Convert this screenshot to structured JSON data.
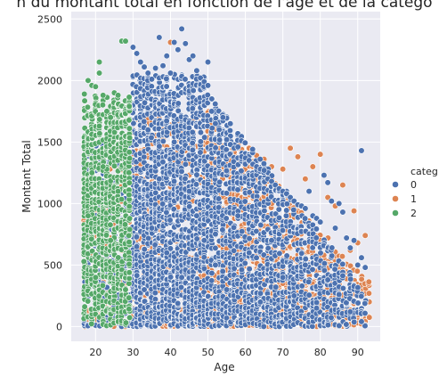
{
  "chart_data": {
    "type": "scatter",
    "title": "n du montant total en fonction de l'âge et de la catégo",
    "xlabel": "Age",
    "ylabel": "Montant Total",
    "xlim": [
      13.5,
      96
    ],
    "ylim": [
      -120,
      2560
    ],
    "x_ticks": [
      "20",
      "30",
      "40",
      "50",
      "60",
      "70",
      "80",
      "90"
    ],
    "y_ticks": [
      "0",
      "500",
      "1000",
      "1500",
      "2000",
      "2500"
    ],
    "grid": true,
    "legend_position": "right",
    "legend_title": "categ",
    "series": [
      {
        "name": "0",
        "color": "#4c72b0",
        "age_range": [
          17,
          92
        ],
        "points": [
          [
            30,
            2270
          ],
          [
            31,
            2220
          ],
          [
            32,
            2150
          ],
          [
            33,
            2110
          ],
          [
            34,
            2060
          ],
          [
            35,
            2010
          ],
          [
            36,
            2100
          ],
          [
            37,
            2350
          ],
          [
            38,
            2120
          ],
          [
            39,
            2200
          ],
          [
            40,
            2060
          ],
          [
            41,
            2310
          ],
          [
            42,
            2250
          ],
          [
            43,
            2420
          ],
          [
            44,
            2300
          ],
          [
            45,
            2170
          ],
          [
            46,
            2200
          ],
          [
            47,
            2080
          ],
          [
            48,
            2020
          ],
          [
            49,
            1990
          ],
          [
            50,
            2150
          ],
          [
            50,
            1960
          ],
          [
            51,
            1750
          ],
          [
            52,
            1650
          ],
          [
            53,
            1600
          ],
          [
            54,
            1700
          ],
          [
            55,
            1520
          ],
          [
            56,
            1480
          ],
          [
            57,
            1450
          ],
          [
            58,
            1460
          ],
          [
            59,
            1380
          ],
          [
            60,
            1370
          ],
          [
            61,
            1350
          ],
          [
            62,
            1320
          ],
          [
            63,
            1300
          ],
          [
            64,
            1280
          ],
          [
            65,
            1270
          ],
          [
            66,
            1200
          ],
          [
            67,
            1180
          ],
          [
            68,
            1150
          ],
          [
            69,
            1120
          ],
          [
            70,
            1100
          ],
          [
            71,
            1080
          ],
          [
            72,
            1050
          ],
          [
            73,
            1020
          ],
          [
            74,
            990
          ],
          [
            75,
            980
          ],
          [
            76,
            960
          ],
          [
            77,
            1100
          ],
          [
            78,
            900
          ],
          [
            79,
            880
          ],
          [
            80,
            850
          ],
          [
            81,
            1230
          ],
          [
            82,
            1170
          ],
          [
            83,
            1020
          ],
          [
            84,
            800
          ],
          [
            85,
            1000
          ],
          [
            86,
            930
          ],
          [
            87,
            720
          ],
          [
            88,
            640
          ],
          [
            89,
            700
          ],
          [
            90,
            500
          ],
          [
            91,
            560
          ],
          [
            91,
            1430
          ],
          [
            92,
            480
          ],
          [
            91,
            40
          ],
          [
            33,
            300
          ],
          [
            35,
            800
          ],
          [
            37,
            1200
          ],
          [
            39,
            600
          ],
          [
            41,
            1500
          ],
          [
            43,
            400
          ],
          [
            45,
            1100
          ],
          [
            47,
            900
          ],
          [
            49,
            700
          ],
          [
            52,
            500
          ],
          [
            55,
            300
          ],
          [
            58,
            900
          ],
          [
            61,
            600
          ],
          [
            64,
            200
          ],
          [
            67,
            700
          ],
          [
            70,
            400
          ],
          [
            73,
            250
          ],
          [
            76,
            500
          ],
          [
            79,
            150
          ],
          [
            82,
            380
          ],
          [
            85,
            260
          ],
          [
            88,
            120
          ]
        ]
      },
      {
        "name": "1",
        "color": "#dd8452",
        "age_range": [
          17,
          93
        ],
        "points": [
          [
            40,
            2310
          ],
          [
            44,
            2010
          ],
          [
            48,
            1780
          ],
          [
            50,
            1740
          ],
          [
            52,
            1720
          ],
          [
            55,
            1500
          ],
          [
            57,
            1480
          ],
          [
            59,
            1440
          ],
          [
            61,
            1450
          ],
          [
            63,
            1390
          ],
          [
            65,
            1360
          ],
          [
            67,
            1300
          ],
          [
            70,
            1280
          ],
          [
            72,
            1450
          ],
          [
            74,
            1380
          ],
          [
            76,
            1200
          ],
          [
            78,
            1300
          ],
          [
            80,
            1400
          ],
          [
            82,
            1050
          ],
          [
            84,
            980
          ],
          [
            86,
            1150
          ],
          [
            88,
            620
          ],
          [
            89,
            940
          ],
          [
            90,
            680
          ],
          [
            91,
            560
          ],
          [
            92,
            740
          ],
          [
            93,
            270
          ],
          [
            92,
            40
          ],
          [
            55,
            400
          ],
          [
            60,
            250
          ],
          [
            65,
            700
          ],
          [
            70,
            350
          ],
          [
            75,
            150
          ],
          [
            80,
            600
          ],
          [
            85,
            300
          ]
        ]
      },
      {
        "name": "2",
        "color": "#55a868",
        "age_range": [
          17,
          29
        ],
        "points": [
          [
            17,
            1890
          ],
          [
            18,
            2000
          ],
          [
            19,
            1960
          ],
          [
            20,
            1950
          ],
          [
            21,
            2150
          ],
          [
            21,
            2060
          ],
          [
            22,
            1880
          ],
          [
            23,
            1750
          ],
          [
            24,
            1700
          ],
          [
            25,
            1900
          ],
          [
            26,
            1880
          ],
          [
            27,
            2320
          ],
          [
            28,
            2320
          ],
          [
            29,
            1790
          ],
          [
            18,
            900
          ],
          [
            20,
            400
          ],
          [
            22,
            1300
          ],
          [
            24,
            700
          ],
          [
            26,
            1100
          ],
          [
            28,
            300
          ]
        ]
      }
    ]
  }
}
